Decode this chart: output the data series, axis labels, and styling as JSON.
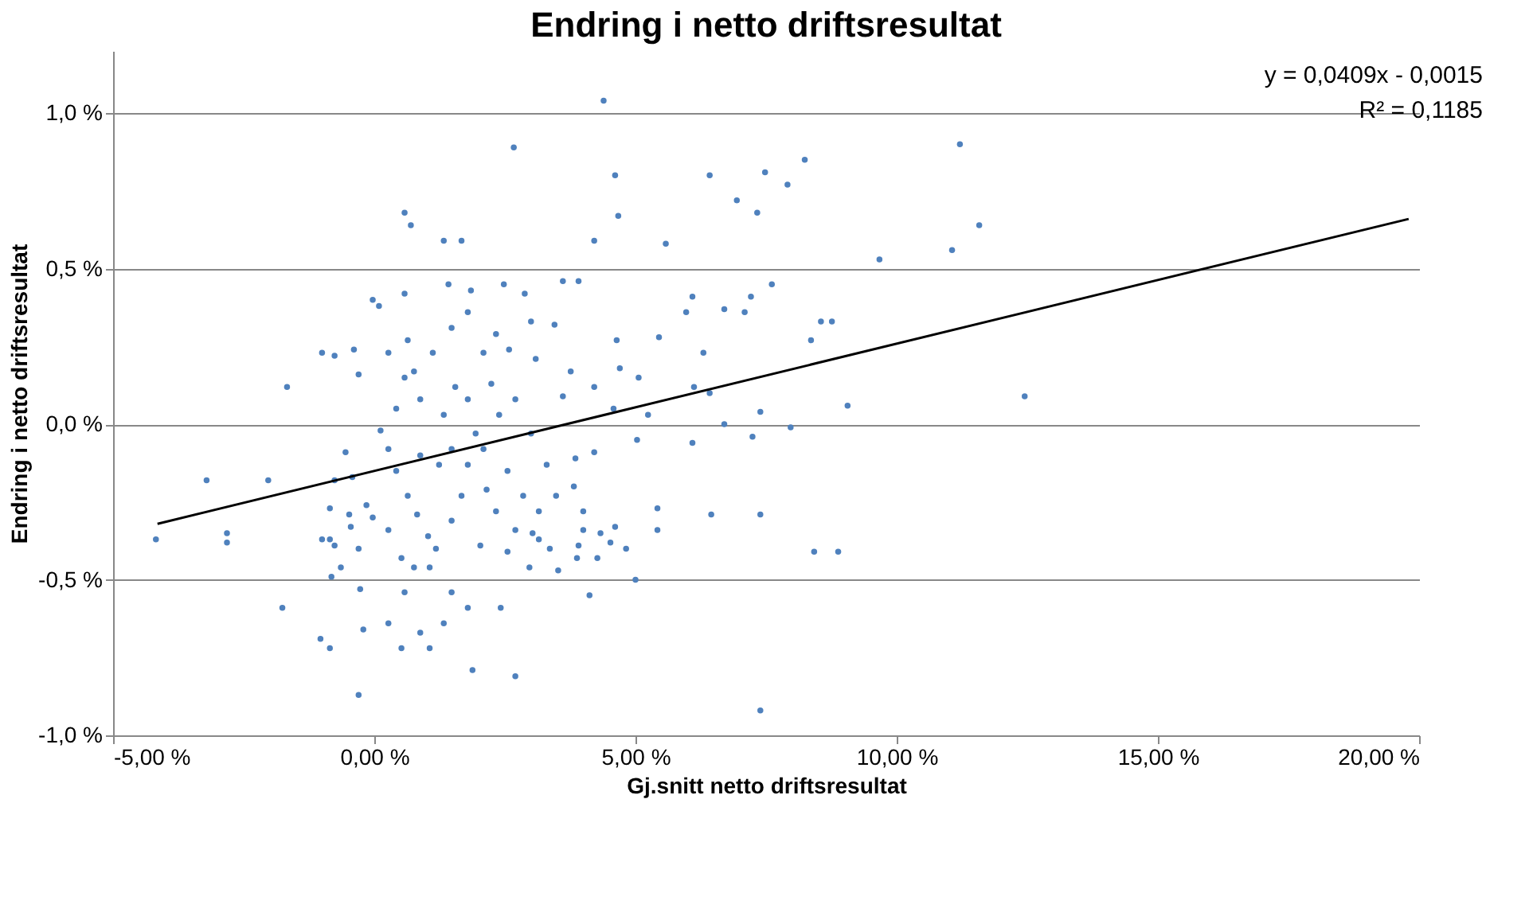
{
  "chart_data": {
    "type": "scatter",
    "title": "Endring i netto driftsresultat",
    "xlabel": "Gj.snitt netto driftsresultat",
    "ylabel": "Endring i netto driftsresultat",
    "xlim": [
      -5,
      20
    ],
    "ylim": [
      -1.0,
      1.2
    ],
    "xticks": [
      {
        "value": -5,
        "label": "-5,00 %"
      },
      {
        "value": 0,
        "label": "0,00 %"
      },
      {
        "value": 5,
        "label": "5,00 %"
      },
      {
        "value": 10,
        "label": "10,00 %"
      },
      {
        "value": 15,
        "label": "15,00 %"
      },
      {
        "value": 20,
        "label": "20,00 %"
      }
    ],
    "yticks": [
      {
        "value": -1.0,
        "label": "-1,0 %"
      },
      {
        "value": -0.5,
        "label": "-0,5 %"
      },
      {
        "value": 0,
        "label": "0,0 %"
      },
      {
        "value": 0.5,
        "label": "0,5 %"
      },
      {
        "value": 1.0,
        "label": "1,0 %"
      }
    ],
    "grid": "y",
    "legend": false,
    "annotations": [
      "y = 0,0409x - 0,0015",
      "R² = 0,1185"
    ],
    "series": [
      {
        "color": "#4f81bd",
        "marker": "circle",
        "x": [
          -4.18,
          -3.21,
          -2.82,
          -2.82,
          -2.03,
          -1.76,
          -1.03,
          -0.85,
          -0.3,
          -0.21,
          -0.27,
          -1.0,
          -0.85,
          0.58,
          0.7,
          1.33,
          1.67,
          0.58,
          1.42,
          1.85,
          -0.03,
          0.09,
          -1.0,
          -0.76,
          -0.39,
          -0.3,
          -1.67,
          4.39,
          2.67,
          4.61,
          4.67,
          4.21,
          5.58,
          6.42,
          6.94,
          7.33,
          7.48,
          7.91,
          8.24,
          3.61,
          2.48,
          3.91,
          5.97,
          6.09,
          6.7,
          7.09,
          7.21,
          7.61,
          8.55,
          8.76,
          8.36,
          6.3,
          5.45,
          4.64,
          4.7,
          5.06,
          6.42,
          6.12,
          9.06,
          7.39,
          4.58,
          5.24,
          3.61,
          4.21,
          3.76,
          3.09,
          3.45,
          3.0,
          2.58,
          2.33,
          2.88,
          11.21,
          11.58,
          11.06,
          9.67,
          12.45,
          8.42,
          8.88,
          7.39,
          7.39,
          2.7,
          1.88,
          4.12,
          5.0,
          3.52,
          2.97,
          2.42,
          3.88,
          4.27,
          4.82,
          4.52,
          4.33,
          3.91,
          4.0,
          3.36,
          3.15,
          2.03,
          2.55,
          3.03,
          4.0,
          4.61,
          5.42,
          5.42,
          6.45,
          6.09,
          7.24,
          7.97,
          6.7,
          5.03,
          4.21,
          3.85,
          3.82,
          -0.55,
          -0.42,
          -0.76,
          -0.85,
          -0.48,
          -0.15,
          -0.45,
          -0.3,
          -0.76,
          -0.64,
          -0.82,
          -0.03,
          0.27,
          0.42,
          0.64,
          0.82,
          1.03,
          0.27,
          0.52,
          0.76,
          0.58,
          1.06,
          1.18,
          1.48,
          1.67,
          1.24,
          0.88,
          1.48,
          1.79,
          1.94,
          1.33,
          0.88,
          0.58,
          0.27,
          0.64,
          1.12,
          1.48,
          1.79,
          2.09,
          2.24,
          2.39,
          2.09,
          2.55,
          2.85,
          1.48,
          1.79,
          1.33,
          0.27,
          0.88,
          0.52,
          1.06,
          0.76,
          0.42,
          0.12,
          1.55,
          1.79,
          2.7,
          3.0,
          3.3,
          3.48,
          3.15,
          2.7,
          2.33,
          2.15
        ],
        "values": [
          -0.37,
          -0.18,
          -0.35,
          -0.38,
          -0.18,
          -0.59,
          -0.69,
          -0.72,
          -0.87,
          -0.66,
          -0.53,
          -0.37,
          -0.37,
          0.68,
          0.64,
          0.59,
          0.59,
          0.42,
          0.45,
          0.43,
          0.4,
          0.38,
          0.23,
          0.22,
          0.24,
          0.16,
          0.12,
          1.04,
          0.89,
          0.8,
          0.67,
          0.59,
          0.58,
          0.8,
          0.72,
          0.68,
          0.81,
          0.77,
          0.85,
          0.46,
          0.45,
          0.46,
          0.36,
          0.41,
          0.37,
          0.36,
          0.41,
          0.45,
          0.33,
          0.33,
          0.27,
          0.23,
          0.28,
          0.27,
          0.18,
          0.15,
          0.1,
          0.12,
          0.06,
          0.04,
          0.05,
          0.03,
          0.09,
          0.12,
          0.17,
          0.21,
          0.32,
          0.33,
          0.24,
          0.29,
          0.42,
          0.9,
          0.64,
          0.56,
          0.53,
          0.09,
          -0.41,
          -0.41,
          -0.29,
          -0.92,
          -0.81,
          -0.79,
          -0.55,
          -0.5,
          -0.47,
          -0.46,
          -0.59,
          -0.43,
          -0.43,
          -0.4,
          -0.38,
          -0.35,
          -0.39,
          -0.34,
          -0.4,
          -0.37,
          -0.39,
          -0.41,
          -0.35,
          -0.28,
          -0.33,
          -0.27,
          -0.34,
          -0.29,
          -0.06,
          -0.04,
          -0.01,
          0.0,
          -0.05,
          -0.09,
          -0.11,
          -0.2,
          -0.09,
          -0.17,
          -0.18,
          -0.27,
          -0.29,
          -0.26,
          -0.33,
          -0.4,
          -0.39,
          -0.46,
          -0.49,
          -0.3,
          -0.08,
          -0.15,
          -0.23,
          -0.29,
          -0.36,
          -0.34,
          -0.43,
          -0.46,
          -0.54,
          -0.46,
          -0.4,
          -0.31,
          -0.23,
          -0.13,
          -0.1,
          -0.08,
          -0.13,
          -0.03,
          0.03,
          0.08,
          0.15,
          0.23,
          0.27,
          0.23,
          0.31,
          0.36,
          0.23,
          0.13,
          0.03,
          -0.08,
          -0.15,
          -0.23,
          -0.54,
          -0.59,
          -0.64,
          -0.64,
          -0.67,
          -0.72,
          -0.72,
          0.17,
          0.05,
          -0.02,
          0.12,
          0.08,
          0.08,
          -0.03,
          -0.13,
          -0.23,
          -0.28,
          -0.34,
          -0.28,
          -0.21
        ]
      },
      {
        "type": "line",
        "color": "#000000",
        "x": [
          -4.15,
          19.8
        ],
        "values": [
          -0.32,
          0.66
        ]
      }
    ]
  }
}
